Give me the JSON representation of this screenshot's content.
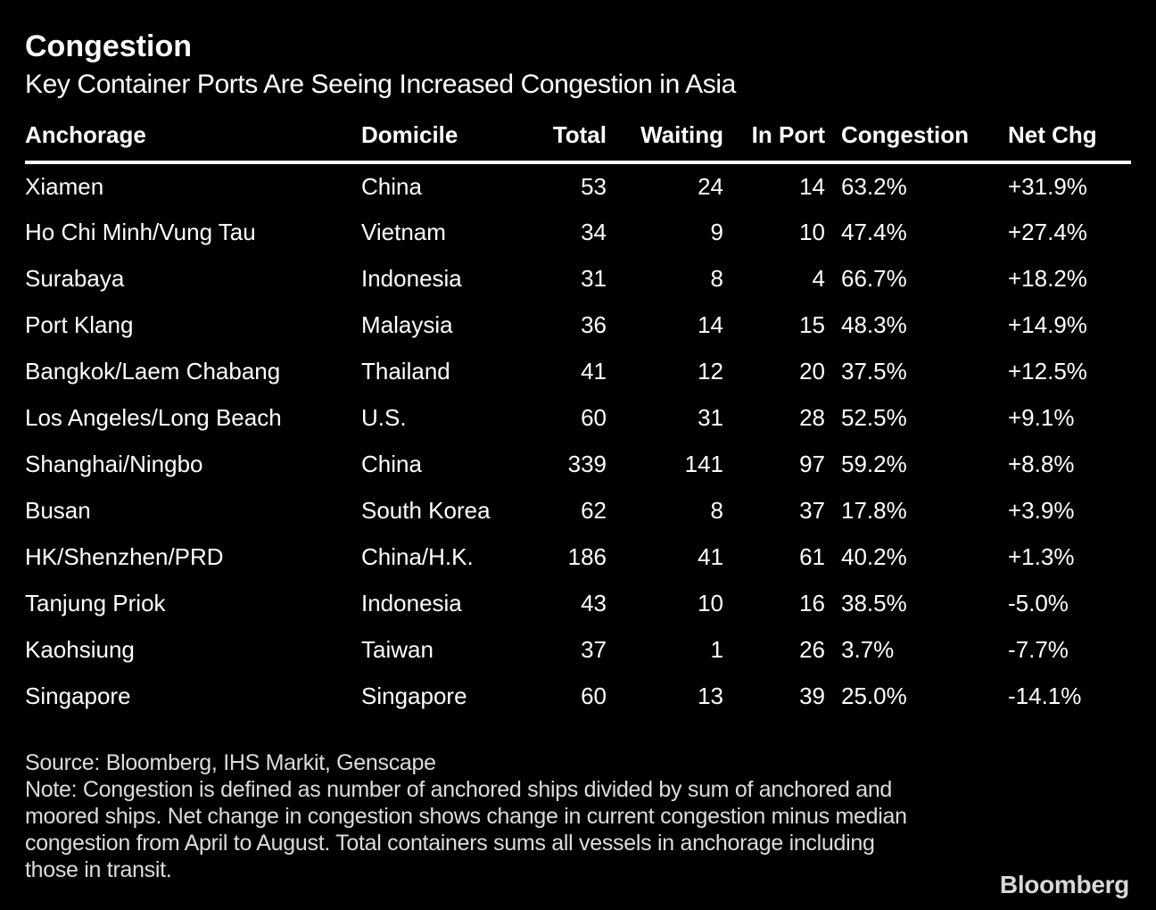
{
  "title": "Congestion",
  "subtitle": "Key Container Ports Are Seeing Increased Congestion in Asia",
  "chart_data": {
    "type": "table",
    "columns": [
      "Anchorage",
      "Domicile",
      "Total",
      "Waiting",
      "In Port",
      "Congestion",
      "Net Chg"
    ],
    "rows": [
      {
        "anchorage": "Xiamen",
        "domicile": "China",
        "total": 53,
        "waiting": 24,
        "in_port": 14,
        "congestion": "63.2%",
        "net_chg": "+31.9%"
      },
      {
        "anchorage": "Ho Chi Minh/Vung Tau",
        "domicile": "Vietnam",
        "total": 34,
        "waiting": 9,
        "in_port": 10,
        "congestion": "47.4%",
        "net_chg": "+27.4%"
      },
      {
        "anchorage": "Surabaya",
        "domicile": "Indonesia",
        "total": 31,
        "waiting": 8,
        "in_port": 4,
        "congestion": "66.7%",
        "net_chg": "+18.2%"
      },
      {
        "anchorage": "Port Klang",
        "domicile": "Malaysia",
        "total": 36,
        "waiting": 14,
        "in_port": 15,
        "congestion": "48.3%",
        "net_chg": "+14.9%"
      },
      {
        "anchorage": "Bangkok/Laem Chabang",
        "domicile": "Thailand",
        "total": 41,
        "waiting": 12,
        "in_port": 20,
        "congestion": "37.5%",
        "net_chg": "+12.5%"
      },
      {
        "anchorage": "Los Angeles/Long Beach",
        "domicile": "U.S.",
        "total": 60,
        "waiting": 31,
        "in_port": 28,
        "congestion": "52.5%",
        "net_chg": "+9.1%"
      },
      {
        "anchorage": "Shanghai/Ningbo",
        "domicile": "China",
        "total": 339,
        "waiting": 141,
        "in_port": 97,
        "congestion": "59.2%",
        "net_chg": "+8.8%"
      },
      {
        "anchorage": "Busan",
        "domicile": "South Korea",
        "total": 62,
        "waiting": 8,
        "in_port": 37,
        "congestion": "17.8%",
        "net_chg": "+3.9%"
      },
      {
        "anchorage": "HK/Shenzhen/PRD",
        "domicile": "China/H.K.",
        "total": 186,
        "waiting": 41,
        "in_port": 61,
        "congestion": "40.2%",
        "net_chg": "+1.3%"
      },
      {
        "anchorage": "Tanjung Priok",
        "domicile": "Indonesia",
        "total": 43,
        "waiting": 10,
        "in_port": 16,
        "congestion": "38.5%",
        "net_chg": "-5.0%"
      },
      {
        "anchorage": "Kaohsiung",
        "domicile": "Taiwan",
        "total": 37,
        "waiting": 1,
        "in_port": 26,
        "congestion": "3.7%",
        "net_chg": "-7.7%"
      },
      {
        "anchorage": "Singapore",
        "domicile": "Singapore",
        "total": 60,
        "waiting": 13,
        "in_port": 39,
        "congestion": "25.0%",
        "net_chg": "-14.1%"
      }
    ]
  },
  "footer": {
    "source": "Source: Bloomberg, IHS Markit, Genscape",
    "note": "Note: Congestion is defined as number of anchored ships divided by sum of anchored and moored ships. Net change in congestion shows change in current congestion minus median congestion from April to August. Total containers sums all vessels in anchorage including those in transit.",
    "logo": "Bloomberg"
  },
  "colors": {
    "background": "#000000",
    "text": "#ffffff",
    "header_rule": "#ffffff",
    "footer_text": "#dcdcdc",
    "logo": "#d8d8d8"
  }
}
